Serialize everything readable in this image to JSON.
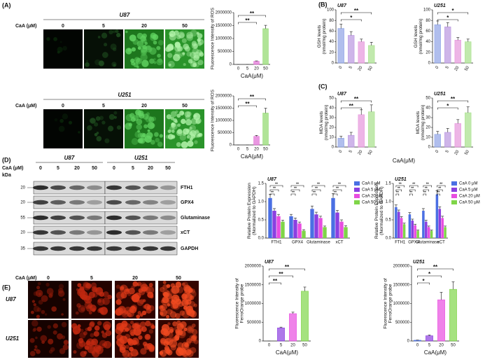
{
  "panel_labels": [
    "(A)",
    "(B)",
    "(C)",
    "(D)",
    "(E)"
  ],
  "panel_a": {
    "treatment_label": "CaA (μM)",
    "concentrations": [
      "0",
      "5",
      "20",
      "50"
    ],
    "cell_lines": [
      "U87",
      "U251"
    ]
  },
  "panel_bc": {
    "xlabel": "CaA(μM)"
  },
  "panel_d": {
    "treatment_label": "CaA (μM)",
    "unit_label": "kDa",
    "cell_lines": [
      "U87",
      "U251"
    ],
    "concentrations": [
      "0",
      "5",
      "20",
      "50"
    ],
    "proteins": [
      {
        "name": "FTH1",
        "kda": "20"
      },
      {
        "name": "GPX4",
        "kda": "20"
      },
      {
        "name": "Glutaminase",
        "kda": "55"
      },
      {
        "name": "xCT",
        "kda": "20"
      },
      {
        "name": "GAPDH",
        "kda": "35"
      }
    ]
  },
  "panel_e": {
    "treatment_label": "CaA (μM)",
    "concentrations": [
      "0",
      "5",
      "20",
      "50"
    ],
    "cell_lines": [
      "U87",
      "U251"
    ]
  },
  "chart_data": [
    {
      "type": "bar",
      "categories": [
        "0",
        "5",
        "20",
        "50"
      ],
      "values": [
        0,
        0,
        120000,
        1380000
      ],
      "errors": [
        0,
        0,
        15000,
        130000
      ],
      "colors": [
        "#5b7fd6",
        "#c49ae0",
        "#e06bd4",
        "#8ed96b"
      ],
      "ylim": [
        0,
        2000000
      ],
      "yticks": [
        0,
        500000,
        1000000,
        1500000,
        2000000
      ],
      "ylabel": [
        "Fluorescence Intensity of ROS"
      ],
      "xlabel": "CaA(μM)",
      "comparisons": [
        {
          "label": "**",
          "groups": [
            "0",
            "50"
          ]
        },
        {
          "label": "**",
          "groups": [
            "0",
            "20"
          ]
        }
      ]
    },
    {
      "type": "bar",
      "categories": [
        "0",
        "5",
        "20",
        "50"
      ],
      "values": [
        0,
        0,
        350000,
        1300000
      ],
      "errors": [
        0,
        0,
        40000,
        200000
      ],
      "colors": [
        "#5b7fd6",
        "#c49ae0",
        "#e06bd4",
        "#8ed96b"
      ],
      "ylim": [
        0,
        2000000
      ],
      "yticks": [
        0,
        500000,
        1000000,
        1500000,
        2000000
      ],
      "ylabel": [
        "Fluorescence Intensity of ROS"
      ],
      "xlabel": "CaA(μM)",
      "comparisons": [
        {
          "label": "**",
          "groups": [
            "0",
            "50"
          ]
        },
        {
          "label": "**",
          "groups": [
            "0",
            "20"
          ]
        }
      ]
    },
    {
      "type": "bar",
      "title": "U87",
      "categories": [
        "0",
        "5",
        "20",
        "50"
      ],
      "values": [
        65,
        52,
        40,
        33
      ],
      "errors": [
        8,
        7,
        5,
        6
      ],
      "colors": [
        "#8ea3e6",
        "#b996e0",
        "#e695dc",
        "#a6e08a"
      ],
      "ylim": [
        0,
        100
      ],
      "yticks": [
        0,
        20,
        40,
        60,
        80,
        100
      ],
      "ylabel": [
        "GSH levels",
        "(nmol/mg protein)"
      ],
      "comparisons": [
        {
          "label": "**",
          "groups": [
            "0",
            "50"
          ]
        },
        {
          "label": "*",
          "groups": [
            "0",
            "20"
          ]
        }
      ]
    },
    {
      "type": "bar",
      "title": "U251",
      "categories": [
        "0",
        "5",
        "20",
        "50"
      ],
      "values": [
        72,
        68,
        43,
        40
      ],
      "errors": [
        7,
        8,
        5,
        5
      ],
      "colors": [
        "#8ea3e6",
        "#b996e0",
        "#e695dc",
        "#a6e08a"
      ],
      "ylim": [
        0,
        100
      ],
      "yticks": [
        0,
        20,
        40,
        60,
        80,
        100
      ],
      "ylabel": [
        "GSH levels",
        "(nmol/mg protein)"
      ],
      "comparisons": [
        {
          "label": "*",
          "groups": [
            "0",
            "50"
          ]
        },
        {
          "label": "*",
          "groups": [
            "0",
            "20"
          ]
        }
      ]
    },
    {
      "type": "bar",
      "title": "U87",
      "categories": [
        "0",
        "5",
        "20",
        "50"
      ],
      "values": [
        9,
        12,
        33,
        36
      ],
      "errors": [
        2,
        3,
        5,
        7
      ],
      "colors": [
        "#8ea3e6",
        "#b996e0",
        "#e695dc",
        "#a6e08a"
      ],
      "ylim": [
        0,
        50
      ],
      "yticks": [
        0,
        10,
        20,
        30,
        40,
        50
      ],
      "ylabel": [
        "MDA levels",
        "(nmol/mg protein)"
      ],
      "comparisons": [
        {
          "label": "**",
          "groups": [
            "0",
            "50"
          ]
        },
        {
          "label": "**",
          "groups": [
            "0",
            "20"
          ]
        }
      ]
    },
    {
      "type": "bar",
      "title": "U251",
      "categories": [
        "0",
        "5",
        "20",
        "50"
      ],
      "values": [
        13,
        15,
        24,
        35
      ],
      "errors": [
        3,
        4,
        4,
        6
      ],
      "colors": [
        "#8ea3e6",
        "#b996e0",
        "#e695dc",
        "#a6e08a"
      ],
      "ylim": [
        0,
        50
      ],
      "yticks": [
        0,
        10,
        20,
        30,
        40,
        50
      ],
      "ylabel": [
        "MDA levels",
        "(nmol/mg protein)"
      ],
      "comparisons": [
        {
          "label": "**",
          "groups": [
            "0",
            "50"
          ]
        },
        {
          "label": "*",
          "groups": [
            "0",
            "20"
          ]
        }
      ]
    },
    {
      "type": "grouped_bar",
      "title": "U87",
      "categories": [
        "FTH1",
        "GPX4",
        "Glutaminase",
        "xCT"
      ],
      "series": [
        {
          "name": "CaA 0 μM",
          "color": "#4a6fe3",
          "values": [
            1.1,
            0.6,
            0.8,
            1.1
          ],
          "errors": [
            0.1,
            0.05,
            0.08,
            0.12
          ]
        },
        {
          "name": "CaA 5 μM",
          "color": "#8b3fe0",
          "values": [
            0.75,
            0.5,
            0.65,
            0.7
          ],
          "errors": [
            0.06,
            0.05,
            0.06,
            0.06
          ]
        },
        {
          "name": "CaA 20 μM",
          "color": "#e84de0",
          "values": [
            0.6,
            0.4,
            0.55,
            0.45
          ],
          "errors": [
            0.05,
            0.04,
            0.05,
            0.05
          ]
        },
        {
          "name": "CaA 50 μM",
          "color": "#7fd548",
          "values": [
            0.45,
            0.2,
            0.3,
            0.3
          ],
          "errors": [
            0.04,
            0.03,
            0.03,
            0.04
          ]
        }
      ],
      "ylim": [
        0,
        1.5
      ],
      "yticks": [
        {
          "value": 0,
          "label": "0.0"
        },
        {
          "value": 0.5,
          "label": "0.5"
        },
        {
          "value": 1,
          "label": "1.0"
        },
        {
          "value": 1.5,
          "label": "1.5"
        }
      ],
      "ylabel": [
        "Relative Protein Expression",
        "(Normalized to GAPDH)"
      ],
      "comparisons": [
        {
          "label": "**",
          "category": "FTH1",
          "groups": [
            "CaA 0 μM",
            "CaA 50 μM"
          ]
        },
        {
          "label": "**",
          "category": "FTH1",
          "groups": [
            "CaA 0 μM",
            "CaA 20 μM"
          ]
        },
        {
          "label": "**",
          "category": "FTH1",
          "groups": [
            "CaA 0 μM",
            "CaA 5 μM"
          ]
        },
        {
          "label": "**",
          "category": "GPX4",
          "groups": [
            "CaA 0 μM",
            "CaA 50 μM"
          ]
        },
        {
          "label": "**",
          "category": "GPX4",
          "groups": [
            "CaA 0 μM",
            "CaA 20 μM"
          ]
        },
        {
          "label": "**",
          "category": "GPX4",
          "groups": [
            "CaA 0 μM",
            "CaA 5 μM"
          ]
        },
        {
          "label": "**",
          "category": "Glutaminase",
          "groups": [
            "CaA 0 μM",
            "CaA 50 μM"
          ]
        },
        {
          "label": "**",
          "category": "Glutaminase",
          "groups": [
            "CaA 0 μM",
            "CaA 20 μM"
          ]
        },
        {
          "label": "**",
          "category": "Glutaminase",
          "groups": [
            "CaA 0 μM",
            "CaA 5 μM"
          ]
        },
        {
          "label": "**",
          "category": "xCT",
          "groups": [
            "CaA 0 μM",
            "CaA 50 μM"
          ]
        },
        {
          "label": "**",
          "category": "xCT",
          "groups": [
            "CaA 0 μM",
            "CaA 20 μM"
          ]
        },
        {
          "label": "**",
          "category": "xCT",
          "groups": [
            "CaA 0 μM",
            "CaA 5 μM"
          ]
        }
      ]
    },
    {
      "type": "grouped_bar",
      "title": "U251",
      "categories": [
        "FTH1",
        "GPX4",
        "Glutaminase",
        "xCT"
      ],
      "series": [
        {
          "name": "CaA 0 μM",
          "color": "#4a6fe3",
          "values": [
            0.85,
            0.65,
            0.75,
            1.2
          ],
          "errors": [
            0.06,
            0.05,
            0.06,
            0.1
          ]
        },
        {
          "name": "CaA 5 μM",
          "color": "#8b3fe0",
          "values": [
            0.72,
            0.48,
            0.45,
            0.8
          ],
          "errors": [
            0.05,
            0.04,
            0.04,
            0.06
          ]
        },
        {
          "name": "CaA 20 μM",
          "color": "#e84de0",
          "values": [
            0.55,
            0.35,
            0.3,
            0.55
          ],
          "errors": [
            0.04,
            0.03,
            0.03,
            0.05
          ]
        },
        {
          "name": "CaA 50 μM",
          "color": "#7fd548",
          "values": [
            0.38,
            0.2,
            0.2,
            0.3
          ],
          "errors": [
            0.03,
            0.02,
            0.02,
            0.03
          ]
        }
      ],
      "ylim": [
        0,
        1.5
      ],
      "yticks": [
        {
          "value": 0,
          "label": "0.0"
        },
        {
          "value": 0.5,
          "label": "0.5"
        },
        {
          "value": 1,
          "label": "1.0"
        },
        {
          "value": 1.5,
          "label": "1.5"
        }
      ],
      "ylabel": [
        "Relative Protein Expression",
        "(Normalized to GAPDH)"
      ],
      "comparisons": [
        {
          "label": "**",
          "category": "FTH1",
          "groups": [
            "CaA 0 μM",
            "CaA 50 μM"
          ]
        },
        {
          "label": "**",
          "category": "FTH1",
          "groups": [
            "CaA 0 μM",
            "CaA 20 μM"
          ]
        },
        {
          "label": "**",
          "category": "FTH1",
          "groups": [
            "CaA 0 μM",
            "CaA 5 μM"
          ]
        },
        {
          "label": "**",
          "category": "GPX4",
          "groups": [
            "CaA 0 μM",
            "CaA 50 μM"
          ]
        },
        {
          "label": "**",
          "category": "GPX4",
          "groups": [
            "CaA 0 μM",
            "CaA 20 μM"
          ]
        },
        {
          "label": "**",
          "category": "GPX4",
          "groups": [
            "CaA 0 μM",
            "CaA 5 μM"
          ]
        },
        {
          "label": "**",
          "category": "Glutaminase",
          "groups": [
            "CaA 0 μM",
            "CaA 50 μM"
          ]
        },
        {
          "label": "**",
          "category": "Glutaminase",
          "groups": [
            "CaA 0 μM",
            "CaA 20 μM"
          ]
        },
        {
          "label": "**",
          "category": "Glutaminase",
          "groups": [
            "CaA 0 μM",
            "CaA 5 μM"
          ]
        },
        {
          "label": "**",
          "category": "xCT",
          "groups": [
            "CaA 0 μM",
            "CaA 50 μM"
          ]
        },
        {
          "label": "**",
          "category": "xCT",
          "groups": [
            "CaA 0 μM",
            "CaA 20 μM"
          ]
        },
        {
          "label": "**",
          "category": "xCT",
          "groups": [
            "CaA 0 μM",
            "CaA 5 μM"
          ]
        }
      ]
    },
    {
      "type": "bar",
      "title": "U87",
      "categories": [
        "0",
        "5",
        "20",
        "50"
      ],
      "values": [
        0,
        350000,
        730000,
        1330000
      ],
      "errors": [
        0,
        20000,
        40000,
        110000
      ],
      "colors": [
        "#4a6fe3",
        "#8b3fe0",
        "#e84de0",
        "#7fd548"
      ],
      "ylim": [
        0,
        2000000
      ],
      "yticks": [
        0,
        500000,
        1000000,
        1500000,
        2000000
      ],
      "ylabel": [
        "Fluorescence Intensity of",
        "FerroOrange probe"
      ],
      "xlabel": "CaA(μM)",
      "comparisons": [
        {
          "label": "**",
          "groups": [
            "0",
            "50"
          ]
        },
        {
          "label": "**",
          "groups": [
            "0",
            "20"
          ]
        },
        {
          "label": "**",
          "groups": [
            "0",
            "5"
          ]
        }
      ]
    },
    {
      "type": "bar",
      "title": "U251",
      "categories": [
        "0",
        "5",
        "20",
        "50"
      ],
      "values": [
        20000,
        140000,
        1100000,
        1380000
      ],
      "errors": [
        5000,
        20000,
        200000,
        200000
      ],
      "colors": [
        "#4a6fe3",
        "#8b3fe0",
        "#e84de0",
        "#7fd548"
      ],
      "ylim": [
        0,
        2000000
      ],
      "yticks": [
        0,
        500000,
        1000000,
        1500000,
        2000000
      ],
      "ylabel": [
        "Fluorescence Intensity of",
        "FerroOrange probe"
      ],
      "xlabel": "CaA(μM)",
      "comparisons": [
        {
          "label": "**",
          "groups": [
            "0",
            "50"
          ]
        },
        {
          "label": "*",
          "groups": [
            "0",
            "20"
          ]
        },
        {
          "label": "*",
          "groups": [
            "0",
            "5"
          ]
        }
      ]
    }
  ]
}
